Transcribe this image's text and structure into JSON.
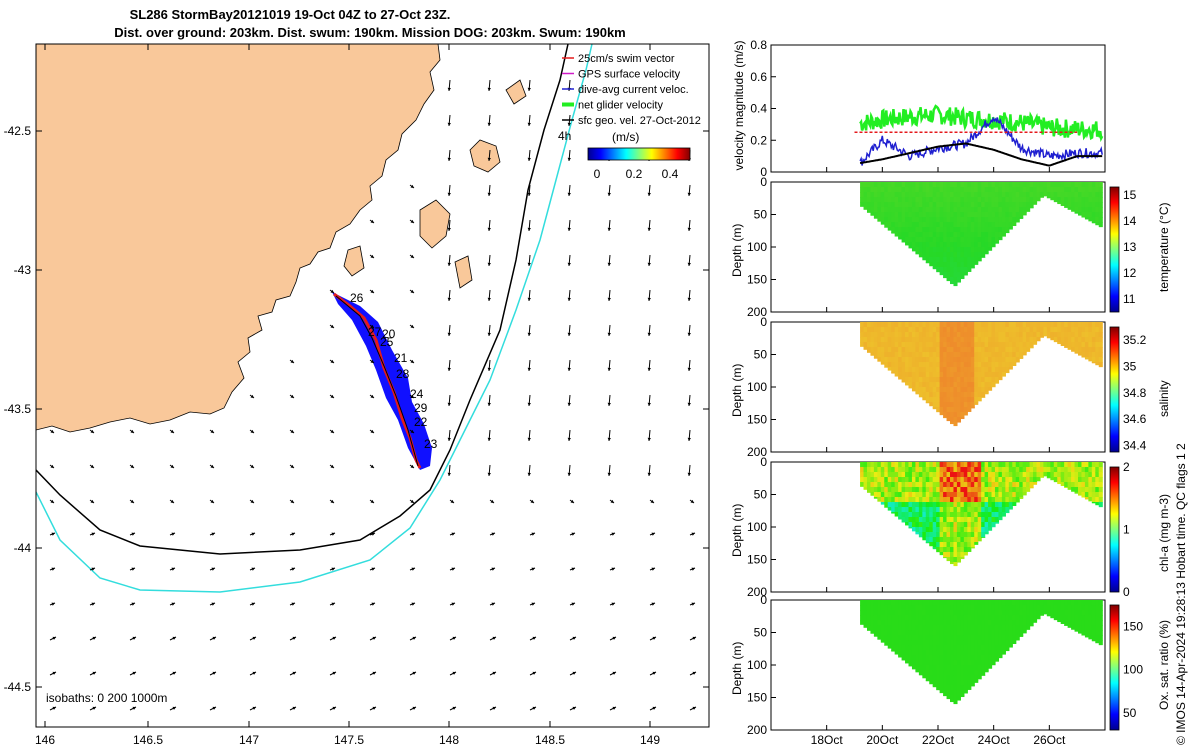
{
  "header": {
    "title_line1": "SL286 StormBay20121019 19-Oct 04Z to 27-Oct 23Z.",
    "title_line2": "Dist. over ground: 203km. Dist. swum: 190km. Mission DOG: 203km. Swum: 190km"
  },
  "colors": {
    "land": "#f9c89a",
    "swim_vector": "#e41a1c",
    "gps_velocity": "#d01cc8",
    "dive_avg": "#1f1fd0",
    "net_glider": "#22ee22",
    "sfc_geo": "#000000",
    "isobath_200": "#000000",
    "isobath_1000": "#33dddd",
    "track": "#1010ff"
  },
  "map": {
    "xticks": [
      "146",
      "146.5",
      "147",
      "147.5",
      "148",
      "148.5",
      "149"
    ],
    "yticks": [
      "-42.5",
      "-43",
      "-43.5",
      "-44",
      "-44.5"
    ],
    "isobaths_label": "isobaths: 0   200  1000m",
    "track_labels": [
      "26",
      "27",
      "20",
      "25",
      "21",
      "28",
      "24",
      "29",
      "22",
      "23"
    ],
    "hour_label": "4h",
    "legend": [
      {
        "label": "25cm/s swim vector",
        "color": "#e41a1c"
      },
      {
        "label": "GPS surface velocity",
        "color": "#d01cc8"
      },
      {
        "label": "dive-avg current veloc.",
        "color": "#1f1fd0"
      },
      {
        "label": "net glider velocity",
        "color": "#22ee22"
      },
      {
        "label": "sfc geo. vel. 27-Oct-2012",
        "color": "#000000"
      }
    ],
    "colorbar": {
      "title": "(m/s)",
      "ticks": [
        "0",
        "0.2",
        "0.4"
      ]
    }
  },
  "right_panels": {
    "xticks": [
      "18Oct",
      "20Oct",
      "22Oct",
      "24Oct",
      "26Oct"
    ],
    "depth_label": "Depth (m)",
    "depth_ticks": [
      "0",
      "50",
      "100",
      "150",
      "200"
    ],
    "credit": "© IMOS 14-Apr-2024 19:28:13 Hobart time. QC flags 1  2"
  },
  "chart_data": [
    {
      "type": "line",
      "ylabel": "velocity magnitude (m/s)",
      "yticks": [
        "0",
        "0.2",
        "0.4",
        "0.6",
        "0.8"
      ],
      "ylim": [
        0,
        0.8
      ],
      "xlim_days": [
        "16Oct",
        "28Oct"
      ],
      "series": [
        {
          "name": "net glider velocity",
          "color": "#22ee22",
          "x": [
            "19Oct",
            "20Oct",
            "21Oct",
            "22Oct",
            "23Oct",
            "24Oct",
            "25Oct",
            "26Oct",
            "27Oct"
          ],
          "values": [
            0.3,
            0.33,
            0.35,
            0.36,
            0.34,
            0.33,
            0.31,
            0.28,
            0.27
          ]
        },
        {
          "name": "dive-avg current veloc.",
          "color": "#1f1fd0",
          "x": [
            "19Oct",
            "20Oct",
            "21Oct",
            "22Oct",
            "23Oct",
            "24Oct",
            "25Oct",
            "26Oct",
            "27Oct"
          ],
          "values": [
            0.02,
            0.2,
            0.1,
            0.15,
            0.18,
            0.35,
            0.15,
            0.1,
            0.12
          ]
        },
        {
          "name": "sfc geo. vel.",
          "color": "#000000",
          "x": [
            "19Oct",
            "20Oct",
            "21Oct",
            "22Oct",
            "23Oct",
            "24Oct",
            "25Oct",
            "26Oct",
            "27Oct"
          ],
          "values": [
            0.05,
            0.08,
            0.12,
            0.16,
            0.18,
            0.14,
            0.08,
            0.04,
            0.1
          ]
        },
        {
          "name": "25cm/s swim vector",
          "color": "#e41a1c",
          "x": [
            "19Oct",
            "27Oct"
          ],
          "values": [
            0.25,
            0.25
          ]
        }
      ]
    },
    {
      "type": "heatmap",
      "variable": "temperature (°C)",
      "colorbar_ticks": [
        "11",
        "12",
        "13",
        "14",
        "15"
      ],
      "range": [
        10.5,
        15.3
      ]
    },
    {
      "type": "heatmap",
      "variable": "salinity",
      "colorbar_ticks": [
        "34.4",
        "34.6",
        "34.8",
        "35",
        "35.2"
      ],
      "range": [
        34.35,
        35.3
      ]
    },
    {
      "type": "heatmap",
      "variable": "chl-a (mg m-3)",
      "colorbar_ticks": [
        "0",
        "1",
        "2"
      ],
      "range": [
        0,
        2
      ]
    },
    {
      "type": "heatmap",
      "variable": "Ox. sat. ratio (%)",
      "colorbar_ticks": [
        "50",
        "100",
        "150"
      ],
      "range": [
        30,
        175
      ]
    }
  ]
}
